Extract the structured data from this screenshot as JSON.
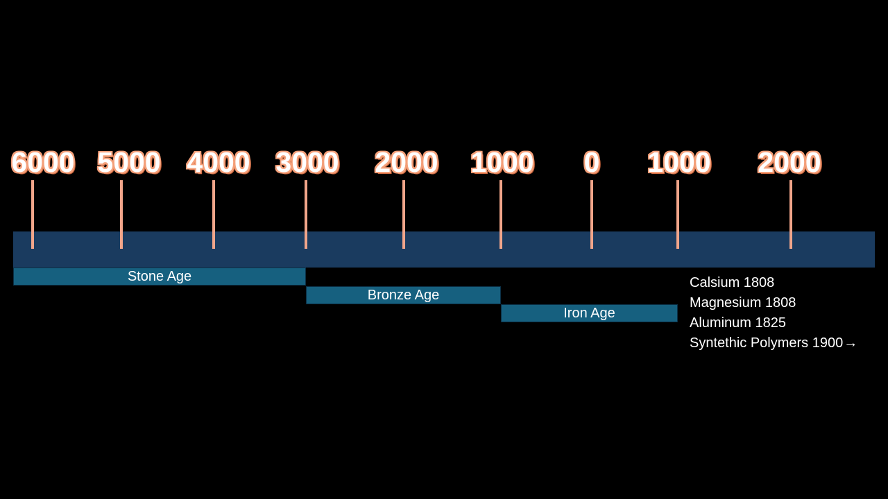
{
  "timeline": {
    "year_labels": [
      "6000",
      "5000",
      "4000",
      "3000",
      "2000",
      "1000",
      "0",
      "1000",
      "2000"
    ],
    "eras": [
      {
        "label": "Stone Age"
      },
      {
        "label": "Bronze Age"
      },
      {
        "label": "Iron Age"
      }
    ]
  },
  "notes": [
    "Calsium 1808",
    "Magnesium 1808",
    "Aluminum 1825",
    "Syntethic Polymers 1900"
  ],
  "notes_arrow": "→",
  "colors": {
    "background": "#000000",
    "timeline_bar": "#1a3b5f",
    "tick": "#f1a58a",
    "era_box": "#16607f",
    "label_outline": "#f4a07a"
  }
}
